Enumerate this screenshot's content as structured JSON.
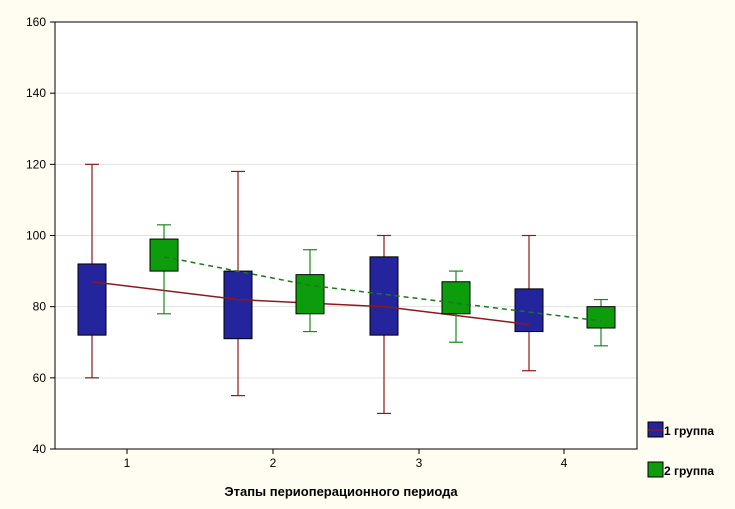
{
  "chart_data": {
    "type": "box",
    "title": "",
    "xlabel": "Этапы периоперационного периода",
    "ylabel": "",
    "categories": [
      "1",
      "2",
      "3",
      "4"
    ],
    "ylim": [
      40,
      160
    ],
    "yticks": [
      40,
      60,
      80,
      100,
      120,
      140,
      160
    ],
    "grid": "horizontal",
    "legend_position": "right",
    "series": [
      {
        "name": "1 группа",
        "color": "#24249c",
        "mean_line": "solid",
        "mean_color": "#8b1a1a",
        "whisker_color": "#8b1a1a",
        "boxes": [
          {
            "min": 60,
            "q1": 72,
            "q3": 92,
            "max": 120,
            "mean": 87
          },
          {
            "min": 55,
            "q1": 71,
            "q3": 90,
            "max": 118,
            "mean": 82
          },
          {
            "min": 50,
            "q1": 72,
            "q3": 94,
            "max": 100,
            "mean": 80
          },
          {
            "min": 62,
            "q1": 73,
            "q3": 85,
            "max": 100,
            "mean": 75
          }
        ]
      },
      {
        "name": "2 группа",
        "color": "#0c9c0c",
        "mean_line": "dashed",
        "mean_color": "#1a7a1a",
        "whisker_color": "#1a8a1a",
        "boxes": [
          {
            "min": 78,
            "q1": 90,
            "q3": 99,
            "max": 103,
            "mean": 94
          },
          {
            "min": 73,
            "q1": 78,
            "q3": 89,
            "max": 96,
            "mean": 86
          },
          {
            "min": 70,
            "q1": 78,
            "q3": 87,
            "max": 90,
            "mean": 81
          },
          {
            "min": 69,
            "q1": 74,
            "q3": 80,
            "max": 82,
            "mean": 76
          }
        ]
      }
    ]
  }
}
